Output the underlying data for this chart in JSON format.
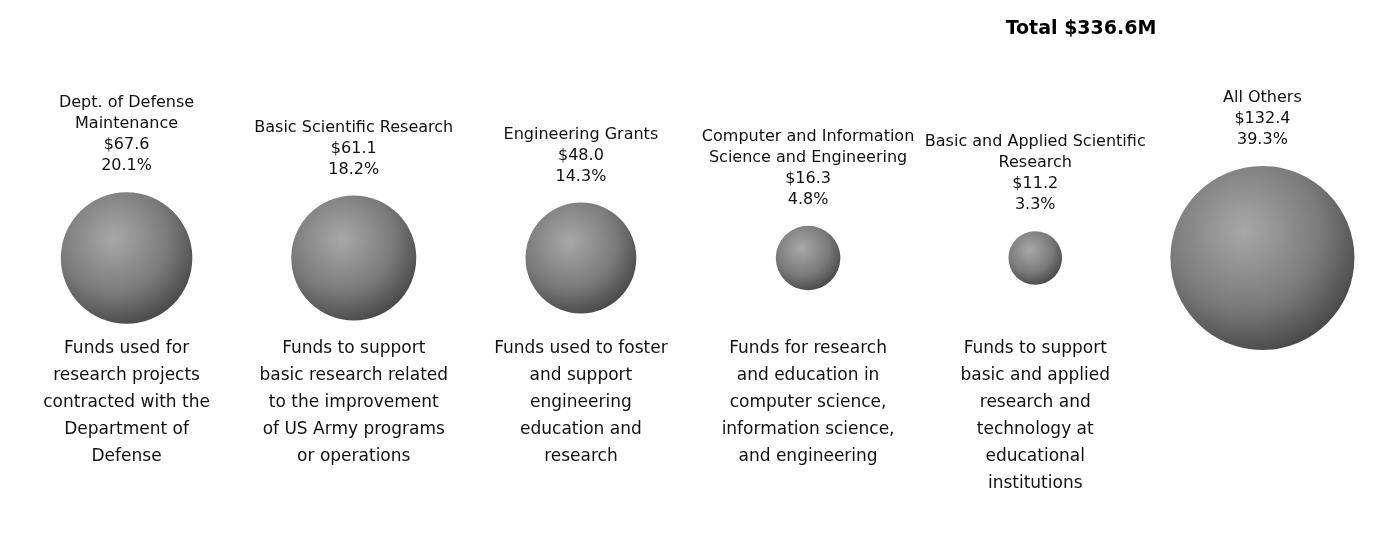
{
  "chart_data": {
    "type": "other",
    "title": "Total $336.6M",
    "categories": [
      "Dept. of Defense Maintenance",
      "Basic Scientific Research",
      "Engineering Grants",
      "Computer and Information Science and Engineering",
      "Basic and Applied Scientific Research",
      "All Others"
    ],
    "values": [
      67.6,
      61.1,
      48.0,
      16.3,
      11.2,
      132.4
    ],
    "value_labels": [
      "$67.6\n20.1%",
      "$61.1\n18.2%",
      "$48.0\n14.3%",
      "$16.3\n4.8%",
      "$11.2\n3.3%",
      "$132.4\n39.3%"
    ],
    "color": "#7a7a7a",
    "annotations": [
      {
        "text": "Funds used for research projects contracted with the Department of Defense",
        "x": "Dept. of Defense Maintenance"
      },
      {
        "text": "Funds to support basic research related to the improvement of US Army programs or operations",
        "x": "Basic Scientific Research"
      },
      {
        "text": "Funds used to foster and support engineering education and research",
        "x": "Engineering Grants"
      },
      {
        "text": "Funds for research and education in computer science, information science, and engineering",
        "x": "Computer and Information Science and Engineering"
      },
      {
        "text": "Funds to support basic and applied research and technology at educational institutions",
        "x": "Basic and Applied Scientific Research"
      }
    ]
  }
}
